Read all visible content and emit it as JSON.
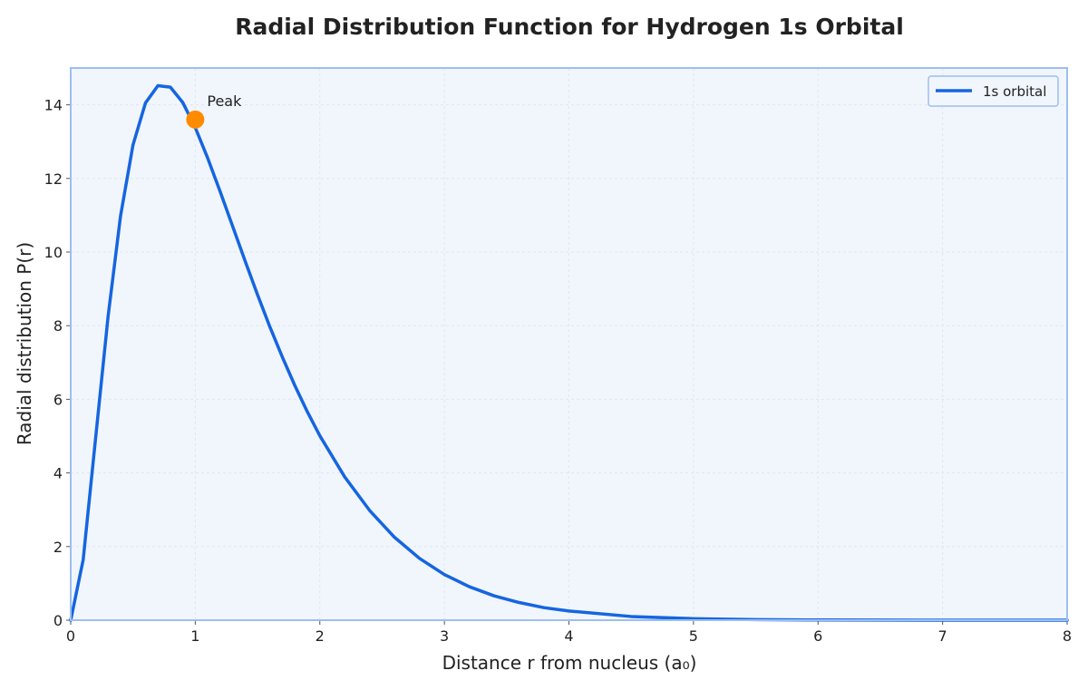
{
  "chart_data": {
    "type": "line",
    "title": "Radial Distribution Function for Hydrogen 1s Orbital",
    "xlabel": "Distance r from nucleus (a₀)",
    "ylabel": "Radial distribution P(r)",
    "xlim": [
      0,
      8
    ],
    "ylim": [
      0,
      15
    ],
    "xticks": [
      "0",
      "1",
      "2",
      "3",
      "4",
      "5",
      "6",
      "7",
      "8"
    ],
    "yticks": [
      "0",
      "2",
      "4",
      "6",
      "8",
      "10",
      "12",
      "14"
    ],
    "grid": true,
    "legend_position": "top-right",
    "series": [
      {
        "name": "1s orbital",
        "color": "#1565e0",
        "x": [
          0,
          0.1,
          0.2,
          0.3,
          0.4,
          0.5,
          0.6,
          0.7,
          0.8,
          0.9,
          1.0,
          1.1,
          1.2,
          1.3,
          1.4,
          1.5,
          1.6,
          1.7,
          1.8,
          1.9,
          2.0,
          2.2,
          2.4,
          2.6,
          2.8,
          3.0,
          3.2,
          3.4,
          3.6,
          3.8,
          4.0,
          4.5,
          5.0,
          5.5,
          6.0,
          6.5,
          7.0,
          7.5,
          8.0
        ],
        "y": [
          0,
          1.64,
          4.95,
          8.25,
          10.98,
          12.91,
          14.05,
          14.52,
          14.48,
          14.06,
          13.38,
          12.55,
          11.64,
          10.7,
          9.76,
          8.84,
          7.96,
          7.14,
          6.37,
          5.66,
          5.01,
          3.89,
          2.98,
          2.25,
          1.68,
          1.24,
          0.91,
          0.66,
          0.48,
          0.34,
          0.25,
          0.1,
          0.04,
          0.015,
          0.006,
          0.002,
          0.001,
          0.0003,
          0.0001
        ]
      }
    ],
    "annotations": [
      {
        "text": "Peak",
        "x": 1.0,
        "y": 13.6,
        "color": "#ff8c00"
      }
    ]
  },
  "colors": {
    "plot_background": "#f1f6fd",
    "frame": "#9dbef0",
    "grid": "#dde6f3",
    "peak_marker": "#ff8c00"
  }
}
